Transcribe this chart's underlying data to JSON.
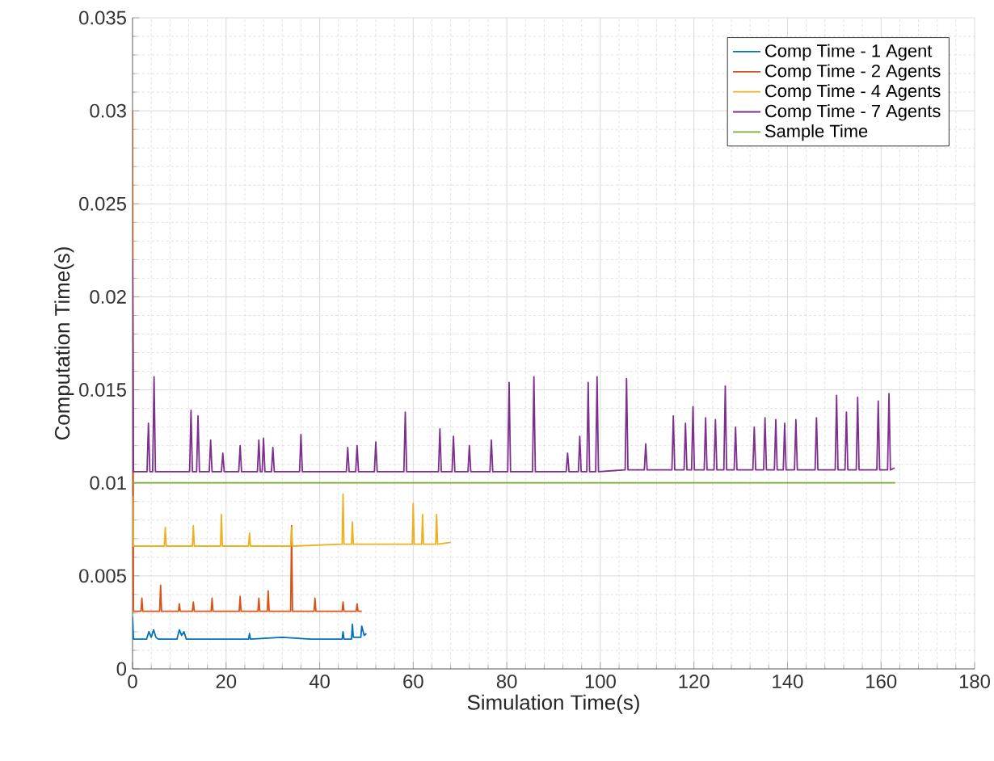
{
  "chart_data": {
    "type": "line",
    "xlabel": "Simulation Time(s)",
    "ylabel": "Computation Time(s)",
    "xlim": [
      0,
      180
    ],
    "xticks": [
      0,
      20,
      40,
      60,
      80,
      100,
      120,
      140,
      160,
      180
    ],
    "ylim": [
      0,
      0.035
    ],
    "yticks": [
      0,
      0.005,
      0.01,
      0.015,
      0.02,
      0.025,
      0.03,
      0.035
    ],
    "grid": true,
    "legend": "top right",
    "series": [
      {
        "name": "Comp Time - 1 Agent",
        "color": "#0072bd",
        "x": [
          0,
          0.2,
          3,
          3.5,
          4,
          4.5,
          5,
          5.5,
          9.5,
          10,
          10.5,
          11,
          11.5,
          15,
          20,
          24.8,
          25,
          25.2,
          32,
          38,
          44.8,
          45,
          45.2,
          46.8,
          47,
          47.2,
          48.8,
          49,
          49.5,
          50
        ],
        "values": [
          0.0028,
          0.0016,
          0.0016,
          0.002,
          0.0017,
          0.0021,
          0.0017,
          0.0016,
          0.0016,
          0.0021,
          0.0018,
          0.002,
          0.0016,
          0.0016,
          0.0016,
          0.0016,
          0.0019,
          0.0016,
          0.0017,
          0.0016,
          0.0016,
          0.002,
          0.0016,
          0.0016,
          0.0024,
          0.0017,
          0.0017,
          0.0023,
          0.0018,
          0.0019
        ]
      },
      {
        "name": "Comp Time - 2 Agents",
        "color": "#d95319",
        "x": [
          0,
          0.2,
          1.8,
          2,
          2.2,
          5.8,
          6,
          6.2,
          9.8,
          10,
          10.2,
          12.8,
          13,
          13.2,
          16.8,
          17,
          17.2,
          22.8,
          23,
          23.2,
          26.8,
          27,
          27.2,
          28.8,
          29,
          29.2,
          33.8,
          34,
          34.2,
          38.8,
          39,
          39.2,
          44.8,
          45,
          45.2,
          47.8,
          48,
          48.2,
          49
        ],
        "values": [
          0.03,
          0.0031,
          0.0031,
          0.0038,
          0.0031,
          0.0031,
          0.0045,
          0.0031,
          0.0031,
          0.0035,
          0.0031,
          0.0031,
          0.0036,
          0.0031,
          0.0031,
          0.0038,
          0.0031,
          0.0031,
          0.0039,
          0.0031,
          0.0031,
          0.0038,
          0.0031,
          0.0031,
          0.0042,
          0.0031,
          0.0031,
          0.0077,
          0.0031,
          0.0031,
          0.0038,
          0.0031,
          0.0031,
          0.0036,
          0.0031,
          0.0031,
          0.0035,
          0.0031,
          0.0031
        ]
      },
      {
        "name": "Comp Time - 4 Agents",
        "color": "#edb120",
        "x": [
          0,
          0.2,
          6.8,
          7,
          7.2,
          12.8,
          13,
          13.2,
          18.8,
          19,
          19.2,
          24.8,
          25,
          25.2,
          33.8,
          34,
          34.2,
          44.8,
          45,
          45.2,
          46.8,
          47,
          47.2,
          59.8,
          60,
          60.2,
          61.8,
          62,
          62.2,
          64.8,
          65,
          65.2,
          68
        ],
        "values": [
          0.0093,
          0.0066,
          0.0066,
          0.0076,
          0.0066,
          0.0066,
          0.0077,
          0.0066,
          0.0066,
          0.0083,
          0.0066,
          0.0066,
          0.0073,
          0.0066,
          0.0066,
          0.0076,
          0.0066,
          0.0067,
          0.0094,
          0.0067,
          0.0067,
          0.0079,
          0.0067,
          0.0067,
          0.0089,
          0.0067,
          0.0067,
          0.0083,
          0.0067,
          0.0067,
          0.0083,
          0.0067,
          0.0068
        ]
      },
      {
        "name": "Comp Time - 7 Agents",
        "color": "#7e2f8e",
        "x": [
          0,
          0.2,
          3.1,
          3.4,
          3.7,
          4.3,
          4.6,
          4.9,
          12.2,
          12.5,
          12.8,
          13.7,
          14,
          14.3,
          16.4,
          16.7,
          17,
          19,
          19.3,
          19.6,
          22.7,
          23,
          23.3,
          26.7,
          27,
          27.3,
          27.7,
          28,
          28.3,
          29.7,
          30,
          30.3,
          35.7,
          36,
          36.3,
          45.7,
          46,
          46.3,
          47.7,
          48,
          48.3,
          51.7,
          52,
          52.3,
          58,
          58.3,
          58.6,
          65.4,
          65.7,
          66,
          68.3,
          68.6,
          68.9,
          71.7,
          72,
          72.3,
          76.4,
          76.7,
          77,
          80.2,
          80.5,
          80.8,
          85.5,
          85.8,
          86.1,
          92.7,
          93,
          93.3,
          95.3,
          95.6,
          95.9,
          97.1,
          97.4,
          97.7,
          99,
          99.3,
          99.6,
          105.3,
          105.6,
          105.9,
          109.4,
          109.7,
          110,
          115.3,
          115.6,
          115.9,
          117.9,
          118.2,
          118.5,
          119.5,
          119.8,
          120.1,
          122.2,
          122.5,
          122.8,
          124.3,
          124.6,
          124.9,
          126.4,
          126.7,
          127,
          128.6,
          128.9,
          129.2,
          132.6,
          132.9,
          133.2,
          134.9,
          135.2,
          135.5,
          137.2,
          137.5,
          137.8,
          139.1,
          139.4,
          139.7,
          141.5,
          141.8,
          142.1,
          145.9,
          146.2,
          146.5,
          150.2,
          150.5,
          150.8,
          152.3,
          152.6,
          152.9,
          154.7,
          155,
          155.3,
          159.1,
          159.4,
          159.7,
          161.4,
          161.7,
          162,
          162.9
        ],
        "values": [
          0.022,
          0.0106,
          0.0106,
          0.0132,
          0.0106,
          0.0106,
          0.0157,
          0.0106,
          0.0106,
          0.0139,
          0.0106,
          0.0106,
          0.0136,
          0.0106,
          0.0106,
          0.0123,
          0.0106,
          0.0106,
          0.0116,
          0.0106,
          0.0106,
          0.012,
          0.0106,
          0.0106,
          0.0123,
          0.0106,
          0.0106,
          0.0124,
          0.0106,
          0.0106,
          0.0119,
          0.0106,
          0.0106,
          0.0126,
          0.0106,
          0.0106,
          0.0119,
          0.0106,
          0.0106,
          0.012,
          0.0106,
          0.0106,
          0.0122,
          0.0106,
          0.0106,
          0.0138,
          0.0106,
          0.0106,
          0.0129,
          0.0106,
          0.0106,
          0.0125,
          0.0106,
          0.0106,
          0.012,
          0.0106,
          0.0106,
          0.0123,
          0.0106,
          0.0106,
          0.0154,
          0.0106,
          0.0106,
          0.0157,
          0.0106,
          0.0106,
          0.0116,
          0.0106,
          0.0106,
          0.0125,
          0.0106,
          0.0106,
          0.0154,
          0.0106,
          0.0106,
          0.0157,
          0.0106,
          0.0107,
          0.0156,
          0.0107,
          0.0107,
          0.0121,
          0.0107,
          0.0107,
          0.0136,
          0.0107,
          0.0107,
          0.0132,
          0.0107,
          0.0107,
          0.0141,
          0.0107,
          0.0107,
          0.0135,
          0.0107,
          0.0107,
          0.0134,
          0.0107,
          0.0107,
          0.0152,
          0.0107,
          0.0107,
          0.013,
          0.0107,
          0.0107,
          0.013,
          0.0107,
          0.0107,
          0.0135,
          0.0107,
          0.0107,
          0.0134,
          0.0107,
          0.0107,
          0.0132,
          0.0107,
          0.0107,
          0.0134,
          0.0107,
          0.0107,
          0.0135,
          0.0107,
          0.0107,
          0.0147,
          0.0107,
          0.0107,
          0.0138,
          0.0107,
          0.0107,
          0.0146,
          0.0107,
          0.0107,
          0.0144,
          0.0107,
          0.0107,
          0.0148,
          0.0107,
          0.0108
        ]
      },
      {
        "name": "Sample Time",
        "color": "#77ac30",
        "x": [
          0,
          163
        ],
        "values": [
          0.01,
          0.01
        ]
      }
    ]
  }
}
